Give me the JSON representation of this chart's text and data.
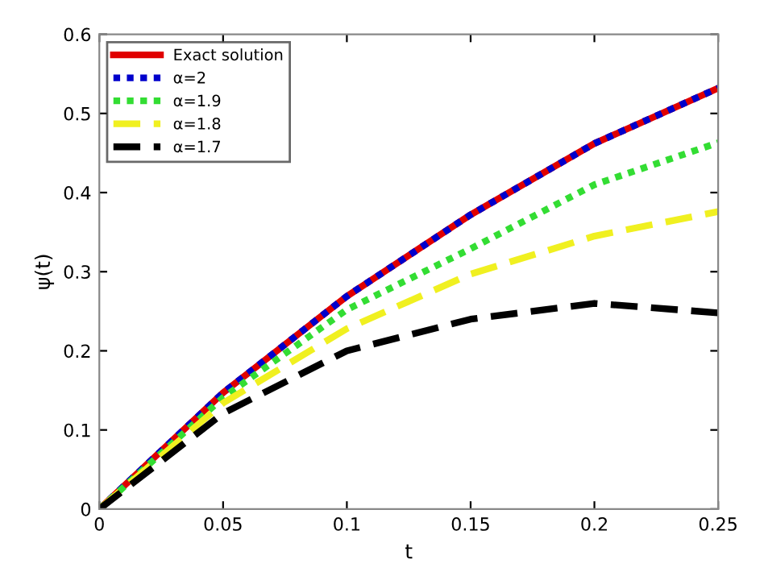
{
  "chart_data": {
    "type": "line",
    "xlabel": "t",
    "ylabel": "ψ(t)",
    "x": [
      0,
      0.05,
      0.1,
      0.15,
      0.2,
      0.25
    ],
    "xlim": [
      0,
      0.25
    ],
    "xticks": [
      0,
      0.05,
      0.1,
      0.15,
      0.2,
      0.25
    ],
    "ylim": [
      0,
      0.6
    ],
    "yticks": [
      0,
      0.1,
      0.2,
      0.3,
      0.4,
      0.5,
      0.6
    ],
    "grid": false,
    "legend": "top left",
    "marker": "none",
    "series": [
      {
        "name": "Exact solution",
        "color": "#e00000",
        "line_style": "solid",
        "values": [
          0,
          0.147,
          0.269,
          0.372,
          0.462,
          0.532
        ]
      },
      {
        "name": "α=2",
        "color": "#0000cc",
        "line_style": "dotted",
        "values": [
          0,
          0.147,
          0.269,
          0.372,
          0.462,
          0.532
        ]
      },
      {
        "name": "α=1.9",
        "color": "#33dd33",
        "line_style": "dotted",
        "values": [
          0,
          0.141,
          0.252,
          0.329,
          0.41,
          0.463
        ]
      },
      {
        "name": "α=1.8",
        "color": "#f0f020",
        "line_style": "dashed",
        "values": [
          0,
          0.134,
          0.228,
          0.297,
          0.345,
          0.376
        ]
      },
      {
        "name": "α=1.7",
        "color": "#000000",
        "line_style": "dashed",
        "values": [
          0,
          0.121,
          0.2,
          0.24,
          0.26,
          0.248
        ]
      }
    ]
  }
}
